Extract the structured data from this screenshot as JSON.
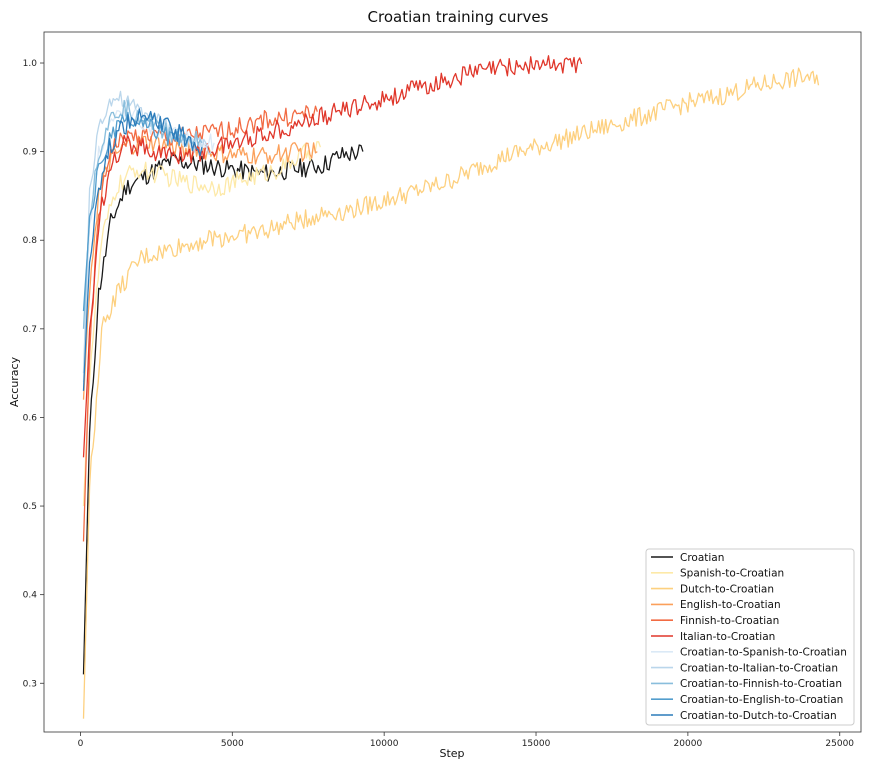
{
  "chart_data": {
    "type": "line",
    "title": "Croatian training curves",
    "xlabel": "Step",
    "ylabel": "Accuracy",
    "xlim": [
      -1200,
      25700
    ],
    "ylim": [
      0.245,
      1.035
    ],
    "xticks": [
      0,
      5000,
      10000,
      15000,
      20000,
      25000
    ],
    "xtick_labels": [
      "0",
      "5000",
      "10000",
      "15000",
      "20000",
      "25000"
    ],
    "yticks": [
      0.3,
      0.4,
      0.5,
      0.6,
      0.7,
      0.8,
      0.9,
      1.0
    ],
    "ytick_labels": [
      "0.3",
      "0.4",
      "0.5",
      "0.6",
      "0.7",
      "0.8",
      "0.9",
      "1.0"
    ],
    "grid": false,
    "legend_position": "bottom-right",
    "series": [
      {
        "name": "Croatian",
        "color": "#1a1a1a",
        "x": [
          100,
          300,
          600,
          1000,
          1500,
          2000,
          3000,
          4000,
          5000,
          6000,
          7000,
          8000,
          8500,
          9300
        ],
        "y": [
          0.31,
          0.58,
          0.74,
          0.82,
          0.86,
          0.87,
          0.89,
          0.885,
          0.88,
          0.875,
          0.88,
          0.885,
          0.895,
          0.9
        ]
      },
      {
        "name": "Spanish-to-Croatian",
        "color": "#fde9a8",
        "x": [
          100,
          300,
          700,
          1200,
          1800,
          2500,
          3500,
          4500,
          5500,
          6500,
          7500,
          7900
        ],
        "y": [
          0.5,
          0.65,
          0.8,
          0.86,
          0.88,
          0.875,
          0.865,
          0.86,
          0.87,
          0.88,
          0.9,
          0.905
        ]
      },
      {
        "name": "Dutch-to-Croatian",
        "color": "#fdd07f",
        "x": [
          100,
          300,
          700,
          1200,
          2000,
          3000,
          4000,
          5000,
          6000,
          7000,
          8000,
          9000,
          10000,
          11000,
          12000,
          13000,
          14000,
          15000,
          16000,
          17000,
          18000,
          19000,
          20000,
          21000,
          22000,
          23000,
          24000,
          24300
        ],
        "y": [
          0.26,
          0.52,
          0.7,
          0.74,
          0.78,
          0.79,
          0.8,
          0.805,
          0.81,
          0.82,
          0.83,
          0.835,
          0.845,
          0.855,
          0.865,
          0.88,
          0.895,
          0.905,
          0.915,
          0.925,
          0.935,
          0.945,
          0.955,
          0.962,
          0.972,
          0.98,
          0.985,
          0.975
        ]
      },
      {
        "name": "English-to-Croatian",
        "color": "#fba05b",
        "x": [
          100,
          300,
          600,
          1000,
          1500,
          2200,
          3000,
          4000,
          5000,
          6000,
          7000,
          7800
        ],
        "y": [
          0.62,
          0.75,
          0.85,
          0.89,
          0.905,
          0.91,
          0.905,
          0.9,
          0.895,
          0.895,
          0.9,
          0.9
        ]
      },
      {
        "name": "Finnish-to-Croatian",
        "color": "#f26b43",
        "x": [
          100,
          300,
          600,
          1000,
          1500,
          2000,
          3000,
          4000,
          5000,
          6000,
          7000,
          7800
        ],
        "y": [
          0.46,
          0.67,
          0.83,
          0.905,
          0.915,
          0.92,
          0.915,
          0.92,
          0.925,
          0.935,
          0.94,
          0.945
        ]
      },
      {
        "name": "Italian-to-Croatian",
        "color": "#e0362a",
        "x": [
          100,
          300,
          600,
          1000,
          1500,
          2000,
          3000,
          4000,
          5000,
          6000,
          7000,
          8000,
          9000,
          10000,
          11000,
          12000,
          13000,
          14000,
          15000,
          16000,
          16500
        ],
        "y": [
          0.555,
          0.69,
          0.82,
          0.89,
          0.91,
          0.905,
          0.895,
          0.9,
          0.91,
          0.92,
          0.93,
          0.94,
          0.95,
          0.96,
          0.97,
          0.98,
          0.99,
          0.995,
          0.998,
          0.999,
          0.999
        ]
      },
      {
        "name": "Croatian-to-Spanish-to-Croatian",
        "color": "#dbe9f6",
        "x": [
          100,
          300,
          600,
          900,
          1200,
          1500,
          2000,
          2500,
          3000,
          3500,
          4000,
          4400
        ],
        "y": [
          0.64,
          0.82,
          0.9,
          0.93,
          0.94,
          0.945,
          0.935,
          0.925,
          0.92,
          0.915,
          0.91,
          0.91
        ]
      },
      {
        "name": "Croatian-to-Italian-to-Croatian",
        "color": "#bad6eb",
        "x": [
          100,
          300,
          600,
          900,
          1200,
          1500,
          2000,
          2500,
          3000,
          3500,
          4000,
          4300
        ],
        "y": [
          0.65,
          0.85,
          0.93,
          0.955,
          0.96,
          0.955,
          0.945,
          0.935,
          0.925,
          0.915,
          0.905,
          0.9
        ]
      },
      {
        "name": "Croatian-to-Finnish-to-Croatian",
        "color": "#89bedc",
        "x": [
          100,
          300,
          600,
          900,
          1200,
          1500,
          2000,
          2500,
          3000,
          3500,
          4000
        ],
        "y": [
          0.7,
          0.83,
          0.9,
          0.93,
          0.945,
          0.95,
          0.94,
          0.93,
          0.92,
          0.915,
          0.91
        ]
      },
      {
        "name": "Croatian-to-English-to-Croatian",
        "color": "#539ecd",
        "x": [
          100,
          300,
          600,
          900,
          1200,
          1500,
          2000,
          2500,
          3000,
          3500
        ],
        "y": [
          0.72,
          0.82,
          0.88,
          0.91,
          0.925,
          0.935,
          0.93,
          0.925,
          0.915,
          0.91
        ]
      },
      {
        "name": "Croatian-to-Dutch-to-Croatian",
        "color": "#2b7bba",
        "x": [
          100,
          300,
          600,
          900,
          1200,
          1500,
          2000,
          2500,
          3000,
          3500,
          4000
        ],
        "y": [
          0.63,
          0.78,
          0.86,
          0.9,
          0.92,
          0.93,
          0.94,
          0.935,
          0.925,
          0.915,
          0.905
        ]
      }
    ]
  }
}
